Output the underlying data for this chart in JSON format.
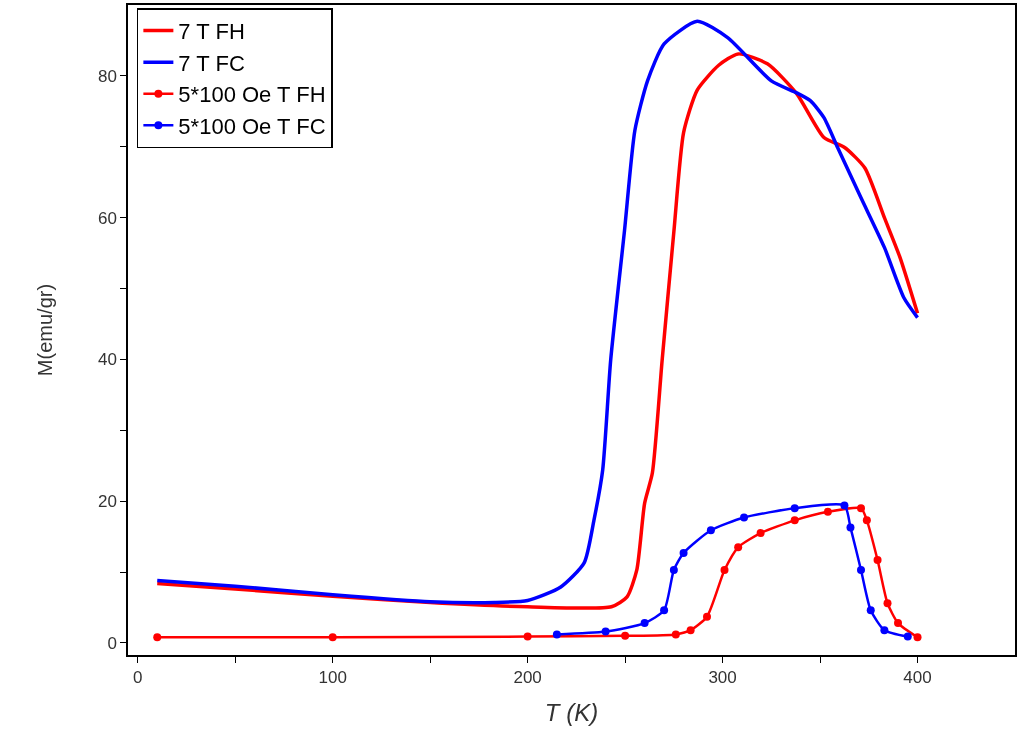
{
  "chart_data": {
    "type": "line",
    "xlabel": "T (K)",
    "ylabel": "M(emu/gr)",
    "xlim": [
      -5,
      450
    ],
    "ylim": [
      -1.7,
      90
    ],
    "xticks": [
      0,
      {
        "value": 50,
        "label": null
      },
      100,
      {
        "value": 150,
        "label": null
      },
      200,
      {
        "value": 250,
        "label": null
      },
      300,
      {
        "value": 350,
        "label": null
      },
      400
    ],
    "yticks": [
      0,
      {
        "value": 10,
        "label": null
      },
      20,
      {
        "value": 30,
        "label": null
      },
      40,
      {
        "value": 50,
        "label": null
      },
      60,
      {
        "value": 70,
        "label": null
      },
      80
    ],
    "grid": false,
    "legend": "top left",
    "line_style": "solid",
    "series": [
      {
        "name": "7 T FH",
        "color": "#ff0000",
        "marker": "none",
        "x": [
          10,
          50,
          100,
          150,
          200,
          243,
          251,
          256,
          260,
          264,
          269,
          275,
          280,
          287,
          298,
          308,
          323,
          338,
          352,
          362.6,
          373,
          383,
          391,
          400
        ],
        "values": [
          8.4,
          7.6,
          6.6,
          5.7,
          5.1,
          5.1,
          6.5,
          10.3,
          19.7,
          24,
          39.9,
          58,
          72,
          78,
          81.5,
          83.1,
          81.7,
          77.5,
          71.3,
          69.9,
          67,
          60,
          54.4,
          46.5
        ]
      },
      {
        "name": "7 T FC",
        "color": "#0000ff",
        "marker": "none",
        "x": [
          10,
          50,
          100,
          150,
          183,
          200,
          217,
          229,
          234,
          238.5,
          242.6,
          249.7,
          255,
          261.5,
          270,
          287,
          302.6,
          325,
          338,
          345,
          352,
          359,
          371,
          383,
          393,
          400
        ],
        "values": [
          8.8,
          8,
          6.8,
          5.8,
          5.7,
          6.0,
          7.9,
          11.3,
          17.3,
          24.4,
          39.9,
          58.2,
          72.3,
          79.3,
          84.5,
          87.7,
          85.4,
          79.3,
          77.6,
          76.5,
          74.1,
          69.9,
          62.8,
          55.8,
          48.7,
          45.9
        ]
      },
      {
        "name": "5*100 Oe T FH",
        "color": "#ff0000",
        "marker": "circle",
        "x": [
          10,
          100,
          200,
          250,
          276,
          283.6,
          292,
          301,
          308,
          319.5,
          337,
          354,
          371,
          374,
          379.5,
          384.6,
          390,
          400
        ],
        "values": [
          0.8,
          0.8,
          0.9,
          1.0,
          1.2,
          1.8,
          3.7,
          10.3,
          13.5,
          15.5,
          17.3,
          18.5,
          19.0,
          17.3,
          11.7,
          5.6,
          2.8,
          0.8
        ]
      },
      {
        "name": "5*100 Oe T FC",
        "color": "#0000ff",
        "marker": "circle",
        "x": [
          215,
          240,
          260,
          270,
          275,
          280,
          294,
          311,
          337,
          362.5,
          365.6,
          371,
          376,
          383,
          395
        ],
        "values": [
          1.2,
          1.6,
          2.8,
          4.6,
          10.3,
          12.7,
          15.9,
          17.7,
          19.0,
          19.4,
          16.3,
          10.3,
          4.6,
          1.8,
          0.9
        ]
      }
    ]
  }
}
